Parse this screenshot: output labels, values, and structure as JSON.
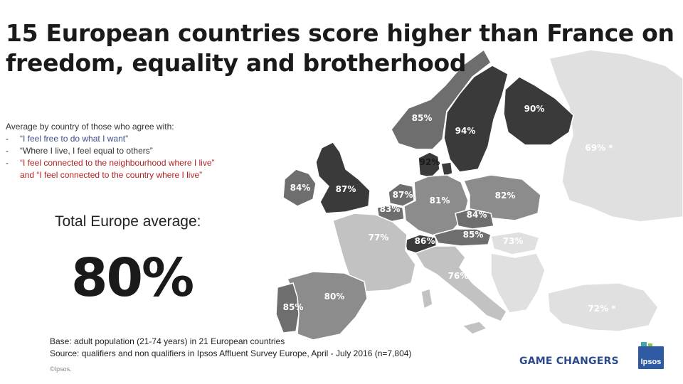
{
  "title": {
    "line1": "15 European countries score higher than France on",
    "line2": "freedom, equality and brotherhood"
  },
  "intro": {
    "heading": "Average by country of those who agree with:",
    "items": [
      "“I feel free to do what I want”",
      "“Where I live, I feel equal to others”",
      "“I feel connected to the neighbourhood where I live”",
      "and “I feel connected to the country where I live”"
    ]
  },
  "average": {
    "label": "Total Europe average:",
    "value": "80%"
  },
  "base": {
    "line1": "Base: adult population (21-74 years) in 21 European countries",
    "line2": "Source: qualifiers and non qualifiers in Ipsos Affluent Survey Europe, April - July 2016 (n=7,804)"
  },
  "copyright": "©Ipsos.",
  "brand": "GAME CHANGERS",
  "logo_text": "Ipsos",
  "map_labels": [
    "85%",
    "94%",
    "90%",
    "69% *",
    "92%",
    "84%",
    "87%",
    "87%",
    "83%",
    "81%",
    "82%",
    "84%",
    "85%",
    "77%",
    "86%",
    "73%",
    "76%",
    "80%",
    "85%",
    "72% *"
  ],
  "colors": {
    "darkest": "#3a3a3a",
    "dark": "#6e6e6e",
    "mid": "#8c8c8c",
    "light": "#c2c2c2",
    "lightest": "#e0e0e0",
    "intro_blue": "#3b4f8a",
    "intro_red": "#b22222",
    "brand_blue": "#2d4a8e"
  }
}
